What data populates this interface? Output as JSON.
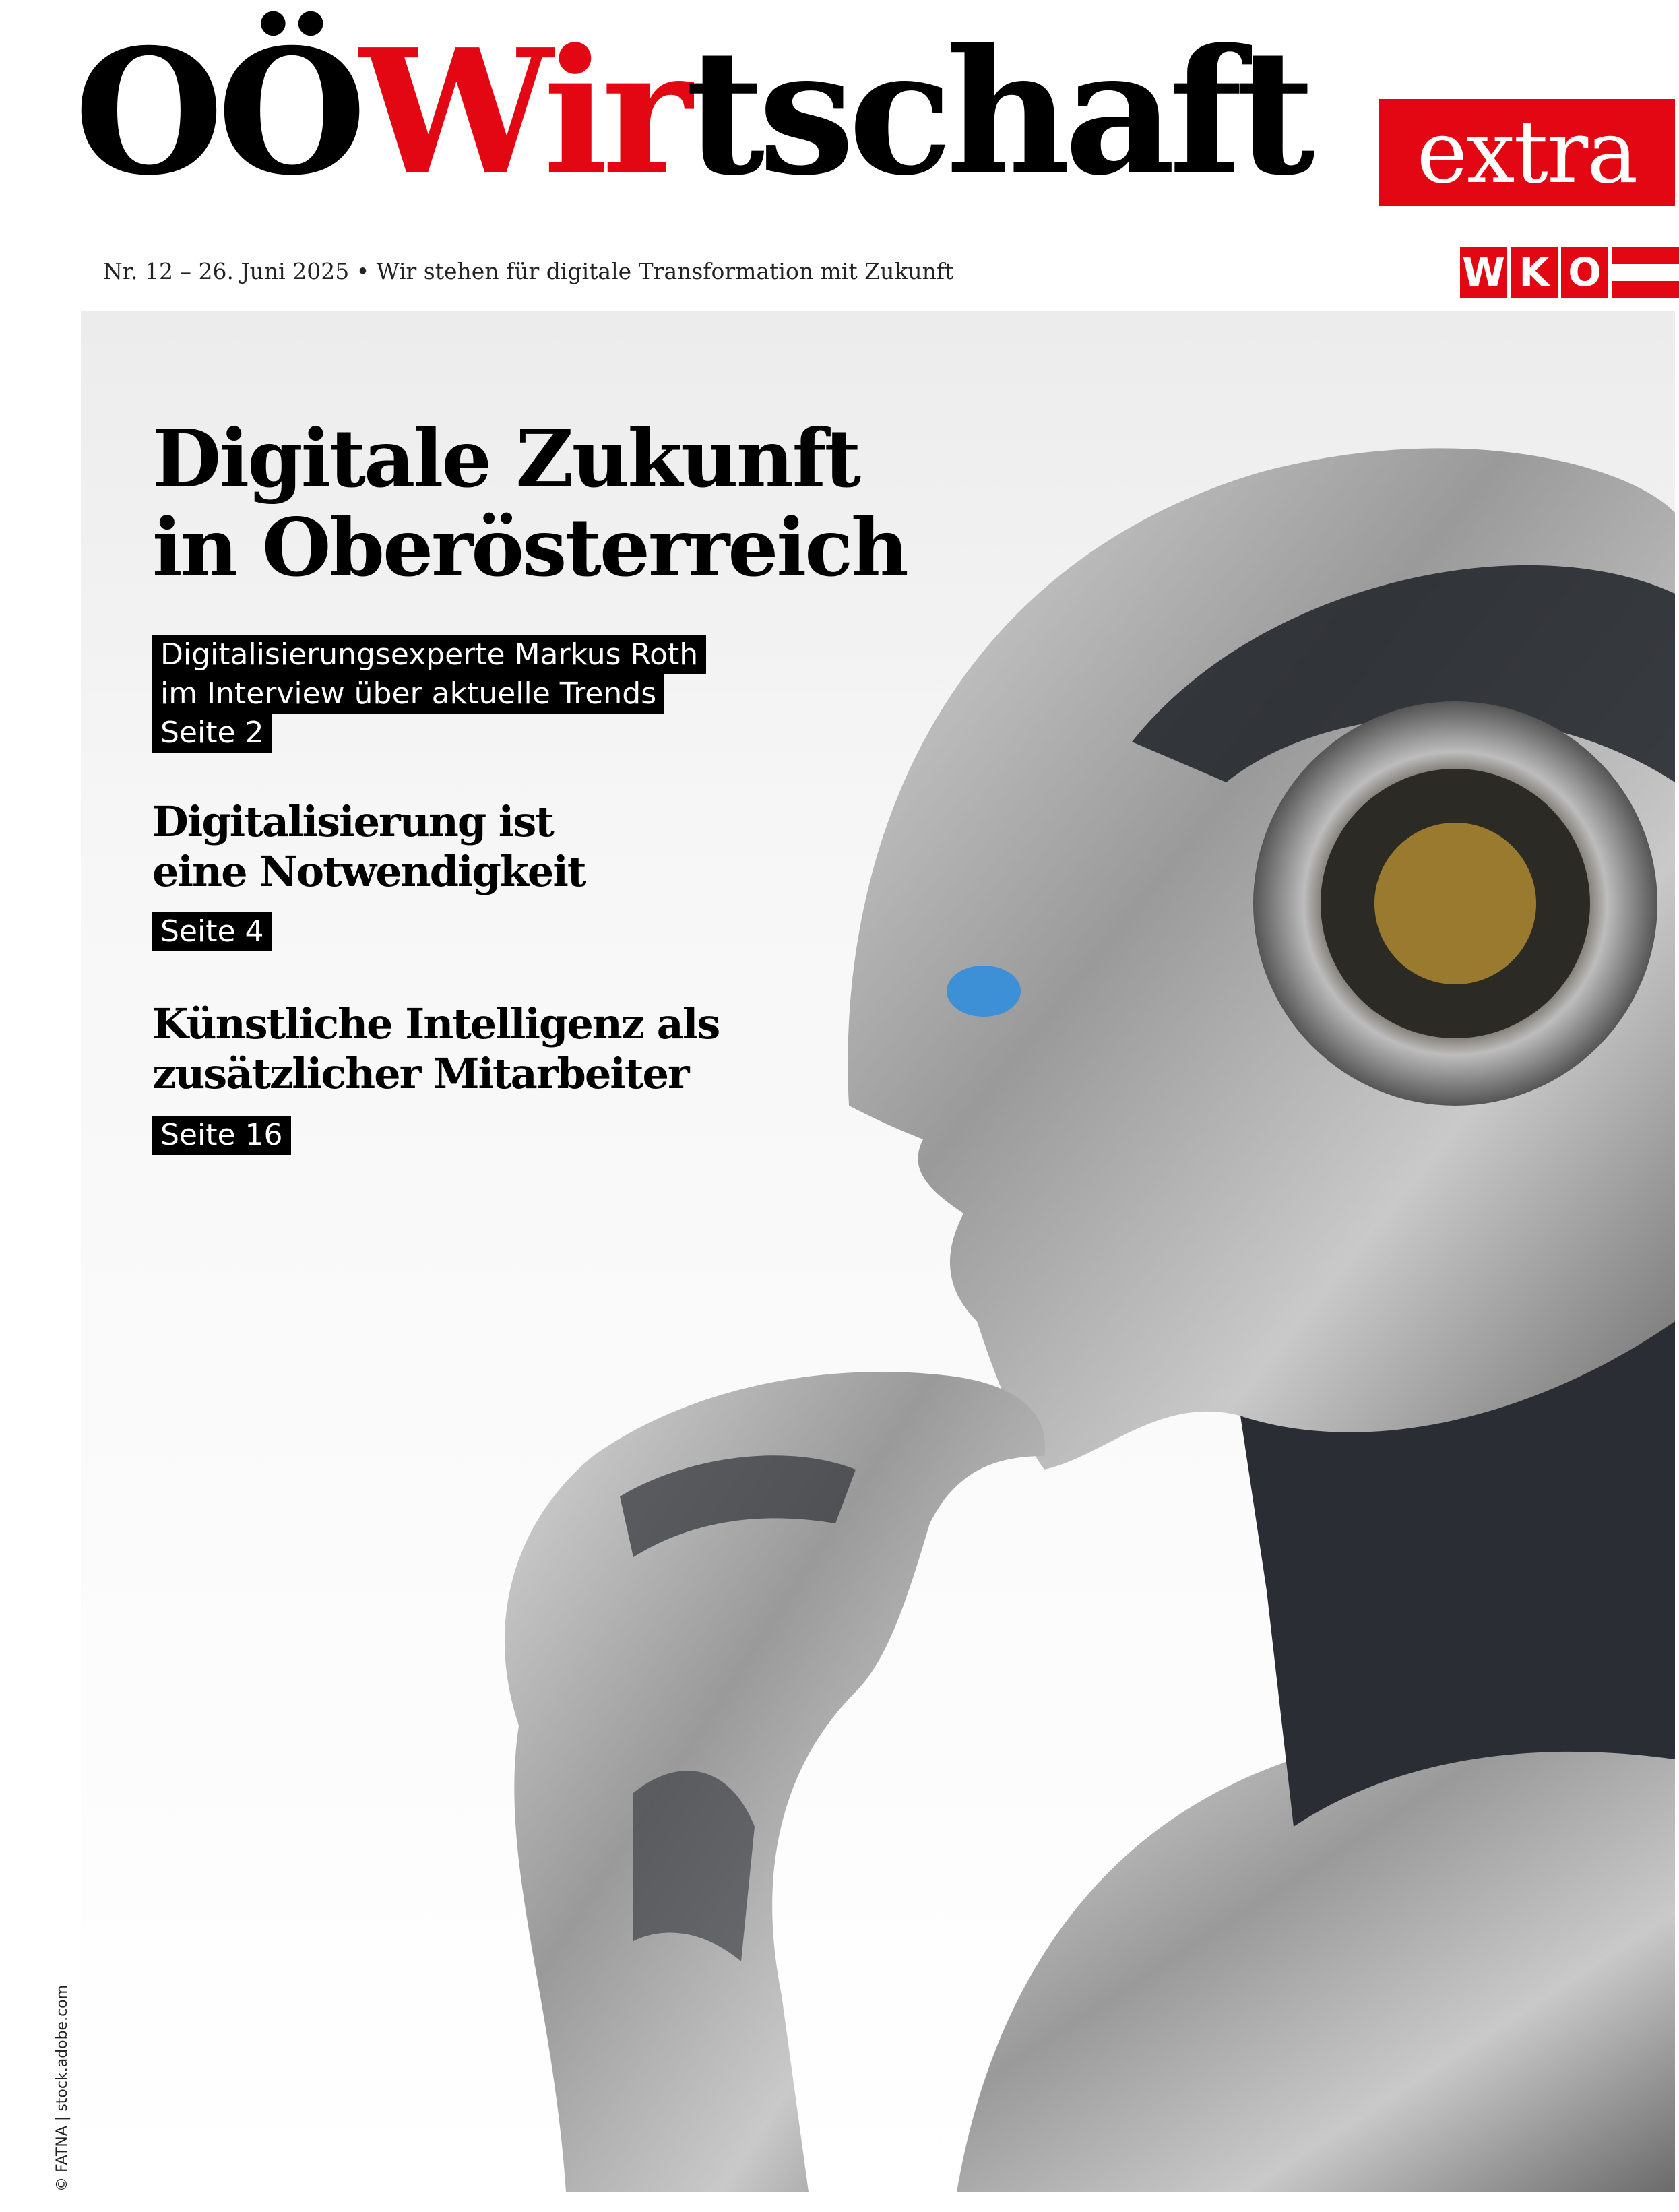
{
  "masthead": {
    "logo_part1": "OÖ",
    "logo_part2": "Wir",
    "logo_part3": "tschaft",
    "extra_label": "extra",
    "issue_line": "Nr. 12 – 26. Juni 2025 • Wir stehen für digitale Transformation mit Zukunft",
    "publisher_logo": [
      "W",
      "K",
      "O"
    ],
    "brand_color": "#e30613"
  },
  "cover": {
    "headline": [
      "Digitale Zukunft",
      "in Oberösterreich"
    ],
    "teasers": [
      {
        "lines": [
          "Digitalisierungsexperte Markus Roth",
          "im Interview über aktuelle Trends"
        ],
        "page": "Seite 2",
        "style": "boxed"
      },
      {
        "lines": [
          "Digitalisierung ist",
          "eine Notwendigkeit"
        ],
        "page": "Seite 4",
        "style": "bold"
      },
      {
        "lines": [
          "Künstliche Intelligenz als",
          "zusätzlicher Mitarbeiter"
        ],
        "page": "Seite 16",
        "style": "bold"
      }
    ],
    "photo_credit": "© FATNA | stock.adobe.com"
  }
}
